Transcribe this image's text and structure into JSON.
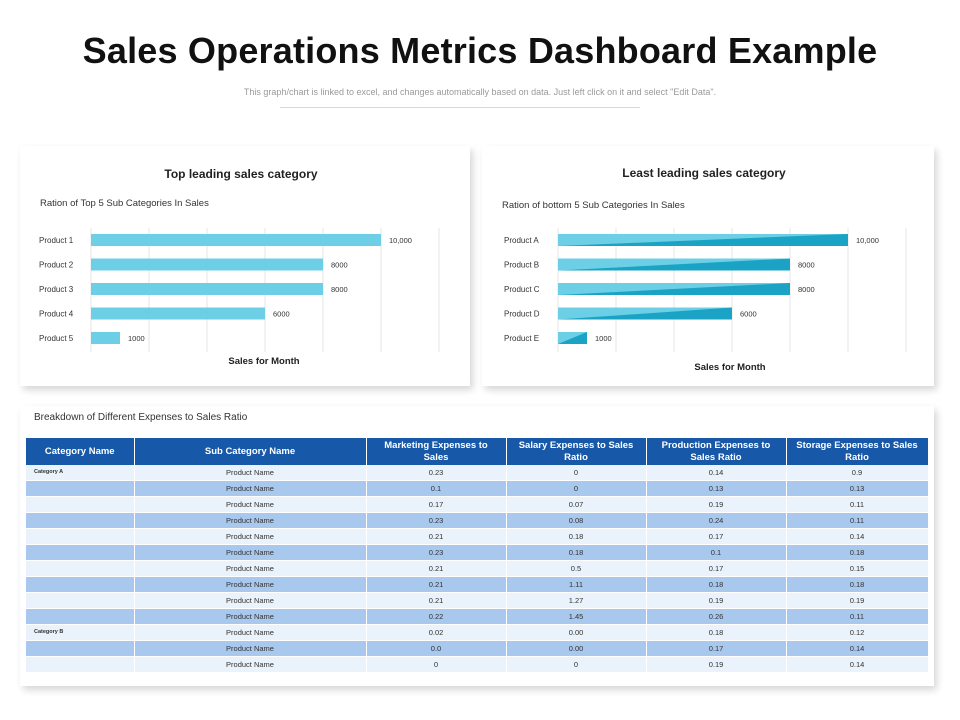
{
  "page": {
    "title": "Sales Operations Metrics Dashboard Example",
    "subtitle": "This graph/chart is linked to excel, and changes automatically based on data. Just left click on it and select \"Edit Data\"."
  },
  "chart_data": [
    {
      "type": "bar",
      "orientation": "horizontal",
      "title": "Top leading sales category",
      "subtitle": "Ration of Top  5 Sub Categories In Sales",
      "xlabel": "Sales for Month",
      "ylabel": "",
      "categories": [
        "Product 1",
        "Product 2",
        "Product 3",
        "Product 4",
        "Product 5"
      ],
      "values": [
        10000,
        8000,
        8000,
        6000,
        1000
      ],
      "value_labels": [
        "10,000",
        "8000",
        "8000",
        "6000",
        "1000"
      ],
      "xlim": [
        0,
        12000
      ],
      "grid": true,
      "bar_color": "#6ccfe6"
    },
    {
      "type": "bar",
      "orientation": "horizontal",
      "title": "Least leading sales category",
      "subtitle": "Ration of bottom  5 Sub Categories In Sales",
      "xlabel": "Sales for Month",
      "ylabel": "",
      "categories": [
        "Product A",
        "Product B",
        "Product C",
        "Product D",
        "Product E"
      ],
      "values": [
        10000,
        8000,
        8000,
        6000,
        1000
      ],
      "value_labels": [
        "10,000",
        "8000",
        "8000",
        "6000",
        "1000"
      ],
      "xlim": [
        0,
        12000
      ],
      "grid": true,
      "bar_color": "#6ccfe6",
      "bar_accent_color": "#1aa3c4"
    },
    {
      "type": "table",
      "title": "Breakdown of Different Expenses to Sales Ratio",
      "columns": [
        "Category Name",
        "Sub Category Name",
        "Marketing Expenses to Sales",
        "Salary Expenses to Sales Ratio",
        "Production Expenses to Sales Ratio",
        "Storage Expenses to Sales Ratio"
      ],
      "rows": [
        [
          "Category A",
          "Product Name",
          "0.23",
          "0",
          "0.14",
          "0.9"
        ],
        [
          "",
          "Product Name",
          "0.1",
          "0",
          "0.13",
          "0.13"
        ],
        [
          "",
          "Product Name",
          "0.17",
          "0.07",
          "0.19",
          "0.11"
        ],
        [
          "",
          "Product Name",
          "0.23",
          "0.08",
          "0.24",
          "0.11"
        ],
        [
          "",
          "Product Name",
          "0.21",
          "0.18",
          "0.17",
          "0.14"
        ],
        [
          "",
          "Product Name",
          "0.23",
          "0.18",
          "0.1",
          "0.18"
        ],
        [
          "",
          "Product Name",
          "0.21",
          "0.5",
          "0.17",
          "0.15"
        ],
        [
          "",
          "Product Name",
          "0.21",
          "1.11",
          "0.18",
          "0.18"
        ],
        [
          "",
          "Product Name",
          "0.21",
          "1.27",
          "0.19",
          "0.19"
        ],
        [
          "",
          "Product Name",
          "0.22",
          "1.45",
          "0.26",
          "0.11"
        ],
        [
          "Category B",
          "Product Name",
          "0.02",
          "0.00",
          "0.18",
          "0.12"
        ],
        [
          "",
          "Product Name",
          "0.0",
          "0.00",
          "0.17",
          "0.14"
        ],
        [
          "",
          "Product Name",
          "0",
          "0",
          "0.19",
          "0.14"
        ]
      ],
      "header_color": "#1858a8",
      "row_colors": [
        "#eaf2fb",
        "#a9c8ee"
      ]
    }
  ]
}
